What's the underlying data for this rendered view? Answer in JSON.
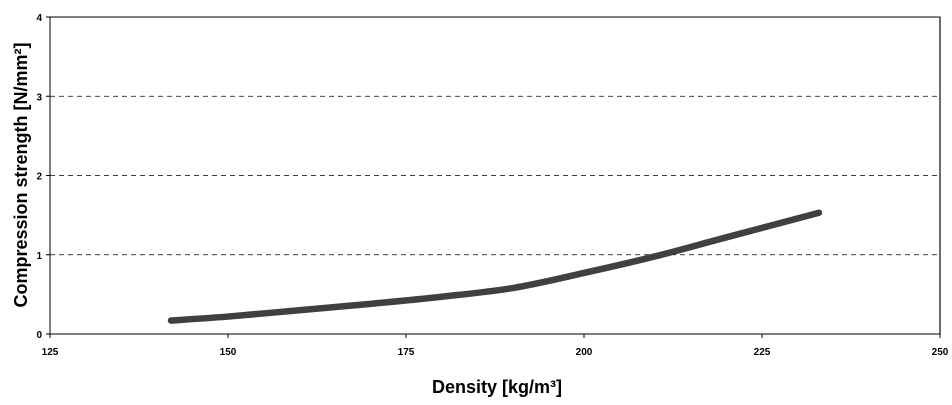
{
  "chart_data": {
    "type": "line",
    "title": "",
    "xlabel": "Density [kg/m³]",
    "ylabel": "Compression strength  [N/mm²]",
    "xlim": [
      125,
      250
    ],
    "ylim": [
      0,
      4
    ],
    "xticks": [
      125,
      150,
      175,
      200,
      225,
      250
    ],
    "yticks": [
      0,
      1,
      2,
      3,
      4
    ],
    "grid": "horizontal dashed",
    "series": [
      {
        "color": "#404040",
        "x": [
          142,
          150,
          160,
          170,
          180,
          190,
          200,
          210,
          220,
          233
        ],
        "y": [
          0.17,
          0.22,
          0.3,
          0.38,
          0.47,
          0.58,
          0.77,
          0.98,
          1.22,
          1.53
        ]
      }
    ]
  }
}
